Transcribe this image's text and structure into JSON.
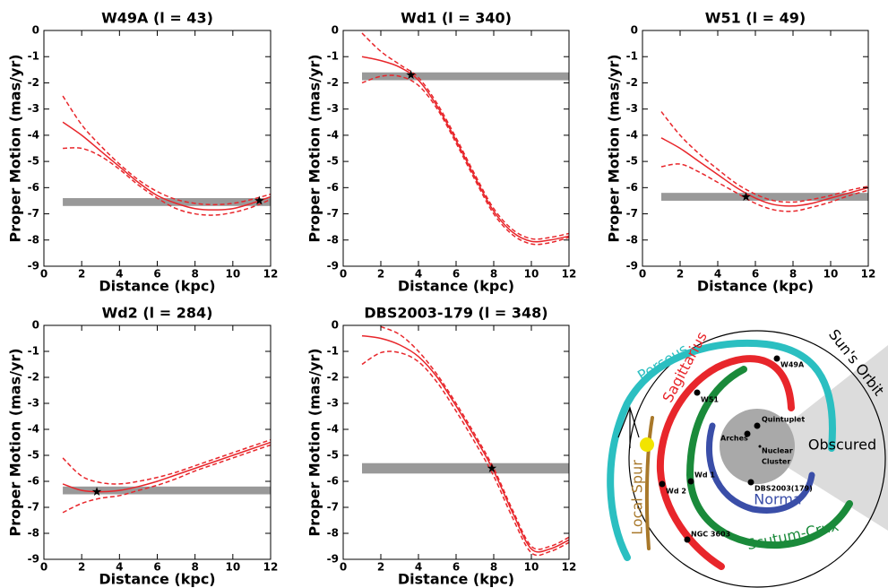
{
  "chart_data": [
    {
      "type": "line",
      "title": "W49A (l = 43)",
      "xlabel": "Distance (kpc)",
      "ylabel": "Proper Motion (mas/yr)",
      "xlim": [
        0,
        12
      ],
      "ylim": [
        -9,
        0
      ],
      "xticks": [
        0,
        2,
        4,
        6,
        8,
        10,
        12
      ],
      "yticks": [
        0,
        -1,
        -2,
        -3,
        -4,
        -5,
        -6,
        -7,
        -8,
        -9
      ],
      "x": [
        1,
        2,
        3,
        4,
        5,
        6,
        7,
        8,
        9,
        10,
        11,
        12
      ],
      "series": [
        {
          "color": "#e8262b",
          "style": "solid",
          "values": [
            -3.5,
            -4.0,
            -4.6,
            -5.2,
            -5.8,
            -6.3,
            -6.6,
            -6.8,
            -6.85,
            -6.8,
            -6.6,
            -6.35
          ]
        },
        {
          "color": "#e8262b",
          "style": "dashed",
          "values": [
            -2.5,
            -3.6,
            -4.4,
            -5.1,
            -5.7,
            -6.15,
            -6.45,
            -6.6,
            -6.65,
            -6.6,
            -6.45,
            -6.25
          ]
        },
        {
          "color": "#e8262b",
          "style": "dashed",
          "values": [
            -4.5,
            -4.5,
            -4.8,
            -5.3,
            -5.9,
            -6.4,
            -6.8,
            -7.0,
            -7.05,
            -6.95,
            -6.75,
            -6.45
          ]
        }
      ],
      "band": {
        "color": "#999999",
        "x": [
          1,
          12
        ],
        "y": [
          -6.7,
          -6.4
        ]
      },
      "star": {
        "x": 11.4,
        "y": -6.5
      }
    },
    {
      "type": "line",
      "title": "Wd1 (l = 340)",
      "xlabel": "Distance (kpc)",
      "ylabel": "Proper Motion (mas/yr)",
      "xlim": [
        0,
        12
      ],
      "ylim": [
        -9,
        0
      ],
      "xticks": [
        0,
        2,
        4,
        6,
        8,
        10,
        12
      ],
      "yticks": [
        0,
        -1,
        -2,
        -3,
        -4,
        -5,
        -6,
        -7,
        -8,
        -9
      ],
      "x": [
        1,
        2,
        3,
        4,
        5,
        6,
        7,
        8,
        9,
        10,
        11,
        12
      ],
      "series": [
        {
          "color": "#e8262b",
          "style": "solid",
          "values": [
            -1.0,
            -1.15,
            -1.4,
            -1.9,
            -2.9,
            -4.2,
            -5.6,
            -6.9,
            -7.7,
            -8.05,
            -8.0,
            -7.85
          ]
        },
        {
          "color": "#e8262b",
          "style": "dashed",
          "values": [
            -0.1,
            -0.8,
            -1.3,
            -1.8,
            -2.8,
            -4.1,
            -5.5,
            -6.8,
            -7.6,
            -7.95,
            -7.9,
            -7.75
          ]
        },
        {
          "color": "#e8262b",
          "style": "dashed",
          "values": [
            -2.0,
            -1.75,
            -1.75,
            -2.1,
            -3.0,
            -4.3,
            -5.7,
            -7.0,
            -7.8,
            -8.15,
            -8.1,
            -7.9
          ]
        }
      ],
      "band": {
        "color": "#999999",
        "x": [
          1,
          12
        ],
        "y": [
          -1.9,
          -1.6
        ]
      },
      "star": {
        "x": 3.6,
        "y": -1.7
      }
    },
    {
      "type": "line",
      "title": "W51 (l = 49)",
      "xlabel": "Distance (kpc)",
      "ylabel": "Proper Motion (mas/yr)",
      "xlim": [
        0,
        12
      ],
      "ylim": [
        -9,
        0
      ],
      "xticks": [
        0,
        2,
        4,
        6,
        8,
        10,
        12
      ],
      "yticks": [
        0,
        -1,
        -2,
        -3,
        -4,
        -5,
        -6,
        -7,
        -8,
        -9
      ],
      "x": [
        1,
        2,
        3,
        4,
        5,
        6,
        7,
        8,
        9,
        10,
        11,
        12
      ],
      "series": [
        {
          "color": "#e8262b",
          "style": "solid",
          "values": [
            -4.1,
            -4.5,
            -5.0,
            -5.5,
            -6.0,
            -6.4,
            -6.65,
            -6.7,
            -6.6,
            -6.4,
            -6.2,
            -6.0
          ]
        },
        {
          "color": "#e8262b",
          "style": "dashed",
          "values": [
            -3.1,
            -4.0,
            -4.7,
            -5.3,
            -5.85,
            -6.25,
            -6.5,
            -6.55,
            -6.45,
            -6.3,
            -6.1,
            -5.95
          ]
        },
        {
          "color": "#e8262b",
          "style": "dashed",
          "values": [
            -5.2,
            -5.1,
            -5.4,
            -5.8,
            -6.2,
            -6.6,
            -6.85,
            -6.9,
            -6.75,
            -6.55,
            -6.3,
            -6.1
          ]
        }
      ],
      "band": {
        "color": "#999999",
        "x": [
          1,
          12
        ],
        "y": [
          -6.5,
          -6.2
        ]
      },
      "star": {
        "x": 5.5,
        "y": -6.35
      }
    },
    {
      "type": "line",
      "title": "Wd2 (l = 284)",
      "xlabel": "Distance (kpc)",
      "ylabel": "Proper Motion (mas/yr)",
      "xlim": [
        0,
        12
      ],
      "ylim": [
        -9,
        0
      ],
      "xticks": [
        0,
        2,
        4,
        6,
        8,
        10,
        12
      ],
      "yticks": [
        0,
        -1,
        -2,
        -3,
        -4,
        -5,
        -6,
        -7,
        -8,
        -9
      ],
      "x": [
        1,
        2,
        3,
        4,
        5,
        6,
        7,
        8,
        9,
        10,
        11,
        12
      ],
      "series": [
        {
          "color": "#e8262b",
          "style": "solid",
          "values": [
            -6.1,
            -6.35,
            -6.4,
            -6.35,
            -6.2,
            -6.0,
            -5.75,
            -5.5,
            -5.25,
            -5.0,
            -4.75,
            -4.5
          ]
        },
        {
          "color": "#e8262b",
          "style": "dashed",
          "values": [
            -5.1,
            -5.8,
            -6.05,
            -6.1,
            -6.0,
            -5.85,
            -5.65,
            -5.4,
            -5.15,
            -4.9,
            -4.65,
            -4.4
          ]
        },
        {
          "color": "#e8262b",
          "style": "dashed",
          "values": [
            -7.2,
            -6.85,
            -6.65,
            -6.55,
            -6.35,
            -6.15,
            -5.9,
            -5.6,
            -5.35,
            -5.1,
            -4.85,
            -4.6
          ]
        }
      ],
      "band": {
        "color": "#999999",
        "x": [
          1,
          12
        ],
        "y": [
          -6.5,
          -6.2
        ]
      },
      "star": {
        "x": 2.8,
        "y": -6.4
      }
    },
    {
      "type": "line",
      "title": "DBS2003-179 (l = 348)",
      "xlabel": "Distance (kpc)",
      "ylabel": "Proper Motion (mas/yr)",
      "xlim": [
        0,
        12
      ],
      "ylim": [
        -9,
        0
      ],
      "xticks": [
        0,
        2,
        4,
        6,
        8,
        10,
        12
      ],
      "yticks": [
        0,
        -1,
        -2,
        -3,
        -4,
        -5,
        -6,
        -7,
        -8,
        -9
      ],
      "x": [
        1,
        2,
        3,
        4,
        5,
        6,
        7,
        8,
        9,
        10,
        11,
        12
      ],
      "series": [
        {
          "color": "#e8262b",
          "style": "solid",
          "values": [
            -0.4,
            -0.5,
            -0.75,
            -1.2,
            -2.0,
            -3.1,
            -4.3,
            -5.6,
            -7.2,
            -8.6,
            -8.6,
            -8.25
          ]
        },
        {
          "color": "#e8262b",
          "style": "dashed",
          "values": [
            null,
            -0.05,
            -0.35,
            -1.0,
            -1.9,
            -3.0,
            -4.2,
            -5.5,
            -7.1,
            -8.5,
            -8.5,
            -8.15
          ]
        },
        {
          "color": "#e8262b",
          "style": "dashed",
          "values": [
            -1.5,
            -1.05,
            -1.05,
            -1.4,
            -2.2,
            -3.3,
            -4.5,
            -5.8,
            -7.4,
            -8.75,
            -8.7,
            -8.35
          ]
        }
      ],
      "band": {
        "color": "#999999",
        "x": [
          1,
          12
        ],
        "y": [
          -5.7,
          -5.3
        ]
      },
      "star": {
        "x": 7.9,
        "y": -5.5
      }
    }
  ],
  "diagram": {
    "perseus": "Perseus",
    "sagittarius": "Sagittarius",
    "suns_orbit": "Sun's Orbit",
    "obscured": "Obscured",
    "local_spur": "Local Spur",
    "norma": "Norma",
    "scutum_crux": "Scutum-Crux",
    "quintuplet": "Quintuplet",
    "arches": "Arches",
    "nuclear_cluster": [
      "Nuclear",
      "Cluster"
    ],
    "w49a": "W49A",
    "w51": "W51",
    "wd1": "Wd 1",
    "wd2": "Wd 2",
    "dbs": "DBS2003(179)",
    "ngc3603": "NGC 3603"
  }
}
